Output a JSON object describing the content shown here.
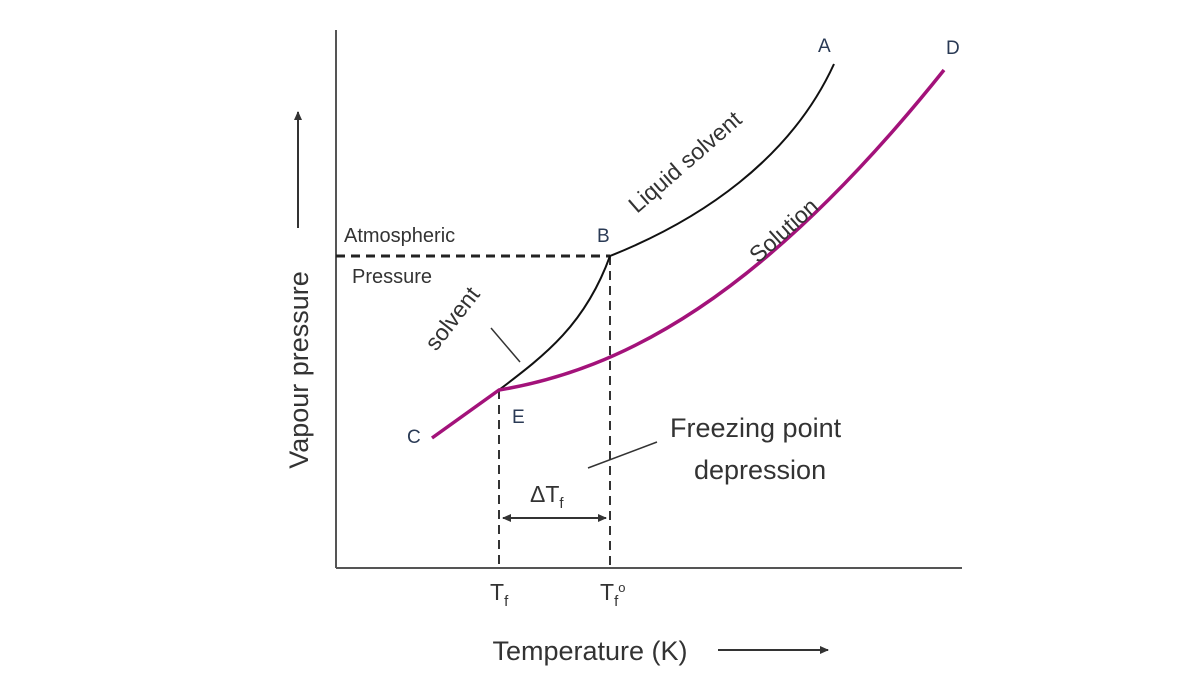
{
  "diagram": {
    "y_axis_label": "Vapour pressure",
    "x_axis_label": "Temperature (K)",
    "atmospheric_label_line1": "Atmospheric",
    "atmospheric_label_line2": "Pressure",
    "curve_liquid_label": "Liquid solvent",
    "curve_solution_label": "Solution",
    "curve_solid_label": "solvent",
    "annotation_line1": "Freezing point",
    "annotation_line2": "depression",
    "delta_symbol": "ΔT",
    "delta_sub": "f",
    "tick_tf_main": "T",
    "tick_tf_sub": "f",
    "tick_tf0_main": "T",
    "tick_tf0_sub": "f",
    "tick_tf0_sup": "o",
    "points": {
      "A": "A",
      "B": "B",
      "C": "C",
      "D": "D",
      "E": "E"
    },
    "colors": {
      "solution_curve": "#a3127a",
      "solvent_curve": "#111111",
      "axes": "#555555",
      "dashed": "#222222"
    }
  }
}
